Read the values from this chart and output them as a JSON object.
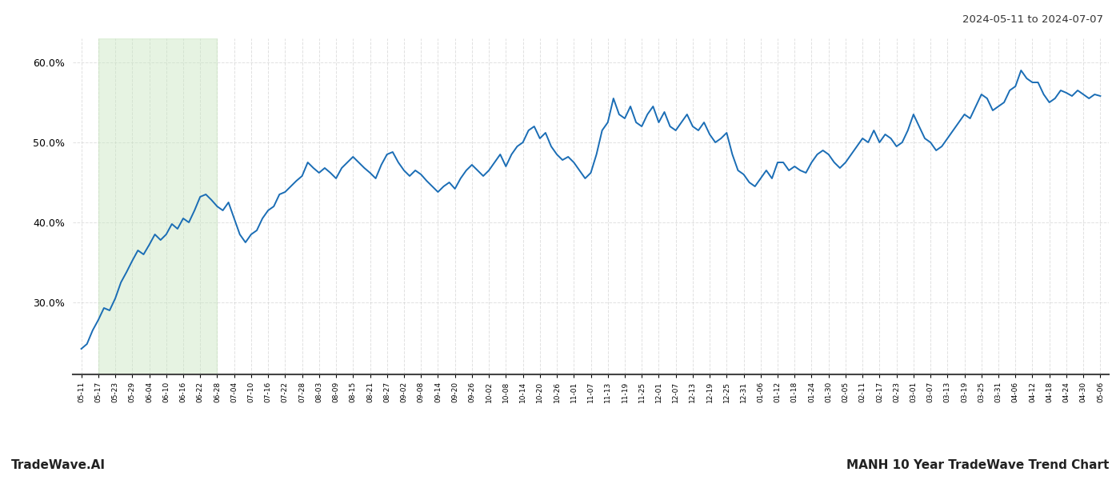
{
  "title_right": "2024-05-11 to 2024-07-07",
  "footer_left": "TradeWave.AI",
  "footer_right": "MANH 10 Year TradeWave Trend Chart",
  "background_color": "#ffffff",
  "line_color": "#1a6db5",
  "shade_color": "#c8e6c0",
  "shade_alpha": 0.45,
  "shade_start_label": "05-17",
  "shade_end_label": "06-28",
  "ylim": [
    21,
    63
  ],
  "yticks": [
    30.0,
    40.0,
    50.0,
    60.0
  ],
  "x_labels": [
    "05-11",
    "05-17",
    "05-23",
    "05-29",
    "06-04",
    "06-10",
    "06-16",
    "06-22",
    "06-28",
    "07-04",
    "07-10",
    "07-16",
    "07-22",
    "07-28",
    "08-03",
    "08-09",
    "08-15",
    "08-21",
    "08-27",
    "09-02",
    "09-08",
    "09-14",
    "09-20",
    "09-26",
    "10-02",
    "10-08",
    "10-14",
    "10-20",
    "10-26",
    "11-01",
    "11-07",
    "11-13",
    "11-19",
    "11-25",
    "12-01",
    "12-07",
    "12-13",
    "12-19",
    "12-25",
    "12-31",
    "01-06",
    "01-12",
    "01-18",
    "01-24",
    "01-30",
    "02-05",
    "02-11",
    "02-17",
    "02-23",
    "03-01",
    "03-07",
    "03-13",
    "03-19",
    "03-25",
    "03-31",
    "04-06",
    "04-12",
    "04-18",
    "04-24",
    "04-30",
    "05-06"
  ],
  "values": [
    24.2,
    24.8,
    26.5,
    27.8,
    29.3,
    29.0,
    30.5,
    32.5,
    33.8,
    35.2,
    36.5,
    36.0,
    37.2,
    38.5,
    37.8,
    38.5,
    39.8,
    39.2,
    40.5,
    40.0,
    41.5,
    43.2,
    43.5,
    42.8,
    42.0,
    41.5,
    42.5,
    40.5,
    38.5,
    37.5,
    38.5,
    39.0,
    40.5,
    41.5,
    42.0,
    43.5,
    43.8,
    44.5,
    45.2,
    45.8,
    47.5,
    46.8,
    46.2,
    46.8,
    46.2,
    45.5,
    46.8,
    47.5,
    48.2,
    47.5,
    46.8,
    46.2,
    45.5,
    47.2,
    48.5,
    48.8,
    47.5,
    46.5,
    45.8,
    46.5,
    46.0,
    45.2,
    44.5,
    43.8,
    44.5,
    45.0,
    44.2,
    45.5,
    46.5,
    47.2,
    46.5,
    45.8,
    46.5,
    47.5,
    48.5,
    47.0,
    48.5,
    49.5,
    50.0,
    51.5,
    52.0,
    50.5,
    51.2,
    49.5,
    48.5,
    47.8,
    48.2,
    47.5,
    46.5,
    45.5,
    46.2,
    48.5,
    51.5,
    52.5,
    55.5,
    53.5,
    53.0,
    54.5,
    52.5,
    52.0,
    53.5,
    54.5,
    52.5,
    53.8,
    52.0,
    51.5,
    52.5,
    53.5,
    52.0,
    51.5,
    52.5,
    51.0,
    50.0,
    50.5,
    51.2,
    48.5,
    46.5,
    46.0,
    45.0,
    44.5,
    45.5,
    46.5,
    45.5,
    47.5,
    47.5,
    46.5,
    47.0,
    46.5,
    46.2,
    47.5,
    48.5,
    49.0,
    48.5,
    47.5,
    46.8,
    47.5,
    48.5,
    49.5,
    50.5,
    50.0,
    51.5,
    50.0,
    51.0,
    50.5,
    49.5,
    50.0,
    51.5,
    53.5,
    52.0,
    50.5,
    50.0,
    49.0,
    49.5,
    50.5,
    51.5,
    52.5,
    53.5,
    53.0,
    54.5,
    56.0,
    55.5,
    54.0,
    54.5,
    55.0,
    56.5,
    57.0,
    59.0,
    58.0,
    57.5,
    57.5,
    56.0,
    55.0,
    55.5,
    56.5,
    56.2,
    55.8,
    56.5,
    56.0,
    55.5,
    56.0,
    55.8
  ],
  "line_width": 1.4,
  "grid_color": "#cccccc",
  "grid_style": "--",
  "grid_alpha": 0.6
}
